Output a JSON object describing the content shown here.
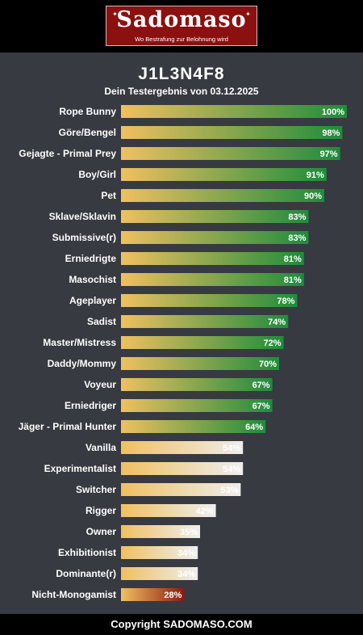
{
  "header": {
    "brand": "Sadomaso",
    "tagline": "Wo Bestrafung zur Belohnung wird"
  },
  "title": "J1L3N4F8",
  "subtitle": "Dein Testergebnis von 03.12.2025",
  "footer": "Copyright SADOMASO.COM",
  "colors": {
    "background": "#373a40",
    "bar_start": "#f0c060",
    "high_end": "#1e8c3c",
    "mid_end": "#eeeeee",
    "low_end": "#8b1a10"
  },
  "chart_data": {
    "type": "bar",
    "orientation": "horizontal",
    "xlim": [
      0,
      100
    ],
    "categories": [
      "Rope Bunny",
      "Göre/Bengel",
      "Gejagte - Primal Prey",
      "Boy/Girl",
      "Pet",
      "Sklave/Sklavin",
      "Submissive(r)",
      "Erniedrigte",
      "Masochist",
      "Ageplayer",
      "Sadist",
      "Master/Mistress",
      "Daddy/Mommy",
      "Voyeur",
      "Erniedriger",
      "Jäger - Primal Hunter",
      "Vanilla",
      "Experimentalist",
      "Switcher",
      "Rigger",
      "Owner",
      "Exhibitionist",
      "Dominante(r)",
      "Nicht-Monogamist"
    ],
    "values": [
      100,
      98,
      97,
      91,
      90,
      83,
      83,
      81,
      81,
      78,
      74,
      72,
      70,
      67,
      67,
      64,
      54,
      54,
      53,
      42,
      35,
      34,
      34,
      28
    ],
    "value_labels": [
      "100%",
      "98%",
      "97%",
      "91%",
      "90%",
      "83%",
      "83%",
      "81%",
      "81%",
      "78%",
      "74%",
      "72%",
      "70%",
      "67%",
      "67%",
      "64%",
      "54%",
      "54%",
      "53%",
      "42%",
      "35%",
      "34%",
      "34%",
      "28%"
    ]
  }
}
